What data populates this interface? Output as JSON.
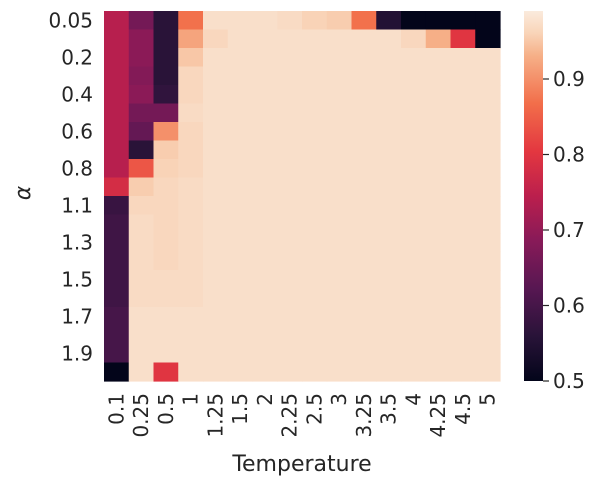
{
  "chart_data": {
    "type": "heatmap",
    "xlabel": "Temperature",
    "ylabel": "α",
    "x_categories": [
      "0.1",
      "0.25",
      "0.5",
      "1",
      "1.25",
      "1.5",
      "2",
      "2.25",
      "2.5",
      "3",
      "3.25",
      "3.5",
      "4",
      "4.25",
      "4.5",
      "5"
    ],
    "y_tick_labels": [
      "0.05",
      "0.2",
      "0.4",
      "0.6",
      "0.8",
      "1.1",
      "1.3",
      "1.5",
      "1.7",
      "1.9"
    ],
    "n_rows": 20,
    "colorbar": {
      "min": 0.5,
      "max": 0.99,
      "ticks": [
        0.5,
        0.6,
        0.7,
        0.8,
        0.9
      ],
      "colormap": "rocket"
    },
    "values": [
      [
        0.74,
        0.66,
        0.56,
        0.87,
        0.975,
        0.975,
        0.975,
        0.97,
        0.96,
        0.955,
        0.87,
        0.55,
        0.5,
        0.5,
        0.5,
        0.5
      ],
      [
        0.74,
        0.69,
        0.56,
        0.92,
        0.965,
        0.975,
        0.975,
        0.975,
        0.975,
        0.975,
        0.975,
        0.975,
        0.965,
        0.93,
        0.8,
        0.5
      ],
      [
        0.74,
        0.69,
        0.56,
        0.95,
        0.975,
        0.975,
        0.975,
        0.975,
        0.975,
        0.975,
        0.975,
        0.975,
        0.975,
        0.975,
        0.975,
        0.975
      ],
      [
        0.74,
        0.68,
        0.56,
        0.965,
        0.975,
        0.975,
        0.975,
        0.975,
        0.975,
        0.975,
        0.975,
        0.975,
        0.975,
        0.975,
        0.975,
        0.975
      ],
      [
        0.74,
        0.69,
        0.57,
        0.965,
        0.975,
        0.975,
        0.975,
        0.975,
        0.975,
        0.975,
        0.975,
        0.975,
        0.975,
        0.975,
        0.975,
        0.975
      ],
      [
        0.74,
        0.66,
        0.66,
        0.97,
        0.975,
        0.975,
        0.975,
        0.975,
        0.975,
        0.975,
        0.975,
        0.975,
        0.975,
        0.975,
        0.975,
        0.975
      ],
      [
        0.74,
        0.64,
        0.9,
        0.965,
        0.975,
        0.975,
        0.975,
        0.975,
        0.975,
        0.975,
        0.975,
        0.975,
        0.975,
        0.975,
        0.975,
        0.975
      ],
      [
        0.74,
        0.56,
        0.955,
        0.965,
        0.975,
        0.975,
        0.975,
        0.975,
        0.975,
        0.975,
        0.975,
        0.975,
        0.975,
        0.975,
        0.975,
        0.975
      ],
      [
        0.74,
        0.84,
        0.96,
        0.965,
        0.975,
        0.975,
        0.975,
        0.975,
        0.975,
        0.975,
        0.975,
        0.975,
        0.975,
        0.975,
        0.975,
        0.975
      ],
      [
        0.78,
        0.955,
        0.965,
        0.97,
        0.975,
        0.975,
        0.975,
        0.975,
        0.975,
        0.975,
        0.975,
        0.975,
        0.975,
        0.975,
        0.975,
        0.975
      ],
      [
        0.58,
        0.965,
        0.965,
        0.97,
        0.975,
        0.975,
        0.975,
        0.975,
        0.975,
        0.975,
        0.975,
        0.975,
        0.975,
        0.975,
        0.975,
        0.975
      ],
      [
        0.59,
        0.97,
        0.965,
        0.97,
        0.975,
        0.975,
        0.975,
        0.975,
        0.975,
        0.975,
        0.975,
        0.975,
        0.975,
        0.975,
        0.975,
        0.975
      ],
      [
        0.59,
        0.97,
        0.965,
        0.97,
        0.975,
        0.975,
        0.975,
        0.975,
        0.975,
        0.975,
        0.975,
        0.975,
        0.975,
        0.975,
        0.975,
        0.975
      ],
      [
        0.59,
        0.97,
        0.965,
        0.97,
        0.975,
        0.975,
        0.975,
        0.975,
        0.975,
        0.975,
        0.975,
        0.975,
        0.975,
        0.975,
        0.975,
        0.975
      ],
      [
        0.59,
        0.97,
        0.97,
        0.97,
        0.975,
        0.975,
        0.975,
        0.975,
        0.975,
        0.975,
        0.975,
        0.975,
        0.975,
        0.975,
        0.975,
        0.975
      ],
      [
        0.59,
        0.97,
        0.97,
        0.97,
        0.975,
        0.975,
        0.975,
        0.975,
        0.975,
        0.975,
        0.975,
        0.975,
        0.975,
        0.975,
        0.975,
        0.975
      ],
      [
        0.6,
        0.975,
        0.975,
        0.975,
        0.975,
        0.975,
        0.975,
        0.975,
        0.975,
        0.975,
        0.975,
        0.975,
        0.975,
        0.975,
        0.975,
        0.975
      ],
      [
        0.6,
        0.975,
        0.975,
        0.975,
        0.975,
        0.975,
        0.975,
        0.975,
        0.975,
        0.975,
        0.975,
        0.975,
        0.975,
        0.975,
        0.975,
        0.975
      ],
      [
        0.6,
        0.975,
        0.975,
        0.975,
        0.975,
        0.975,
        0.975,
        0.975,
        0.975,
        0.975,
        0.975,
        0.975,
        0.975,
        0.975,
        0.975,
        0.975
      ],
      [
        0.5,
        0.975,
        0.8,
        0.975,
        0.975,
        0.975,
        0.975,
        0.975,
        0.975,
        0.975,
        0.975,
        0.975,
        0.975,
        0.975,
        0.975,
        0.975
      ]
    ]
  }
}
